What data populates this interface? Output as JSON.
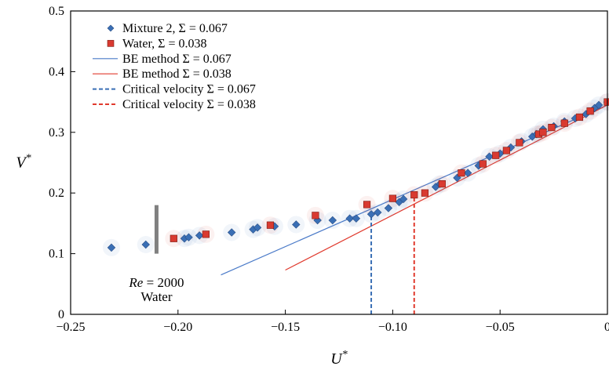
{
  "chart_data": {
    "type": "scatter",
    "xlabel": "U*",
    "ylabel": "V*",
    "xlim": [
      -0.25,
      0
    ],
    "ylim": [
      0,
      0.5
    ],
    "xticks": [
      -0.25,
      -0.2,
      -0.15,
      -0.1,
      -0.05,
      0
    ],
    "xtick_labels": [
      "−0.25",
      "−0.20",
      "−0.15",
      "−0.10",
      "−0.05",
      "0"
    ],
    "yticks": [
      0,
      0.1,
      0.2,
      0.3,
      0.4,
      0.5
    ],
    "ytick_labels": [
      "0",
      "0.1",
      "0.2",
      "0.3",
      "0.4",
      "0.5"
    ],
    "grid": false,
    "legend_position": "top-left",
    "series": [
      {
        "name": "Mixture 2, Σ = 0.067",
        "kind": "scatter",
        "marker": "diamond",
        "color": "#3a6fb5",
        "x": [
          -0.231,
          -0.215,
          -0.197,
          -0.195,
          -0.19,
          -0.175,
          -0.165,
          -0.163,
          -0.155,
          -0.145,
          -0.135,
          -0.128,
          -0.12,
          -0.117,
          -0.11,
          -0.107,
          -0.102,
          -0.097,
          -0.095,
          -0.08,
          -0.078,
          -0.07,
          -0.065,
          -0.06,
          -0.055,
          -0.05,
          -0.045,
          -0.04,
          -0.035,
          -0.033,
          -0.03,
          -0.025,
          -0.02,
          -0.015,
          -0.01,
          -0.006,
          -0.004,
          0.0
        ],
        "y": [
          0.11,
          0.115,
          0.125,
          0.127,
          0.13,
          0.135,
          0.14,
          0.143,
          0.145,
          0.148,
          0.155,
          0.155,
          0.158,
          0.158,
          0.165,
          0.168,
          0.175,
          0.185,
          0.19,
          0.21,
          0.215,
          0.225,
          0.233,
          0.245,
          0.26,
          0.265,
          0.275,
          0.285,
          0.293,
          0.297,
          0.305,
          0.31,
          0.318,
          0.323,
          0.33,
          0.34,
          0.345,
          0.35
        ]
      },
      {
        "name": "Water, Σ = 0.038",
        "kind": "scatter",
        "marker": "square",
        "color": "#d93a30",
        "x": [
          -0.202,
          -0.187,
          -0.157,
          -0.136,
          -0.112,
          -0.1,
          -0.09,
          -0.085,
          -0.077,
          -0.068,
          -0.058,
          -0.052,
          -0.047,
          -0.041,
          -0.032,
          -0.03,
          -0.026,
          -0.02,
          -0.013,
          -0.008,
          0.0
        ],
        "y": [
          0.125,
          0.132,
          0.147,
          0.163,
          0.181,
          0.191,
          0.197,
          0.2,
          0.215,
          0.233,
          0.248,
          0.262,
          0.27,
          0.283,
          0.297,
          0.3,
          0.308,
          0.315,
          0.325,
          0.335,
          0.35
        ]
      },
      {
        "name": "BE method Σ = 0.067",
        "kind": "line",
        "style": "solid",
        "color": "#4a7ac8",
        "x": [
          -0.18,
          0
        ],
        "y": [
          0.065,
          0.345
        ]
      },
      {
        "name": "BE method Σ = 0.038",
        "kind": "line",
        "style": "solid",
        "color": "#e03a2e",
        "x": [
          -0.15,
          0
        ],
        "y": [
          0.073,
          0.345
        ]
      },
      {
        "name": "Critical velocity Σ = 0.067",
        "kind": "vline",
        "style": "dashed",
        "color": "#3a6fb5",
        "x": [
          -0.11,
          -0.11
        ],
        "y": [
          0,
          0.163
        ]
      },
      {
        "name": "Critical velocity Σ = 0.038",
        "kind": "vline",
        "style": "dashed",
        "color": "#e03a2e",
        "x": [
          -0.09,
          -0.09
        ],
        "y": [
          0,
          0.197
        ]
      }
    ],
    "annotations": [
      {
        "kind": "error_bar",
        "color": "#808080",
        "x": -0.21,
        "y_range": [
          0.1,
          0.18
        ],
        "label_line1_var": "Re",
        "label_line1_rest": " = 2000",
        "label_line2": "Water",
        "label_x": -0.21,
        "label_y_line1": 0.045,
        "label_y_line2": 0.022
      }
    ],
    "legend": [
      {
        "label": "Mixture 2, Σ = 0.067",
        "symbol": "diamond",
        "color": "#3a6fb5"
      },
      {
        "label": "Water, Σ = 0.038",
        "symbol": "square",
        "color": "#d93a30"
      },
      {
        "label": "BE method Σ = 0.067",
        "symbol": "line",
        "color": "#4a7ac8"
      },
      {
        "label": "BE method Σ = 0.038",
        "symbol": "line",
        "color": "#e03a2e"
      },
      {
        "label": "Critical velocity Σ = 0.067",
        "symbol": "dashed",
        "color": "#3a6fb5"
      },
      {
        "label": "Critical velocity Σ = 0.038",
        "symbol": "dashed",
        "color": "#e03a2e"
      }
    ]
  }
}
